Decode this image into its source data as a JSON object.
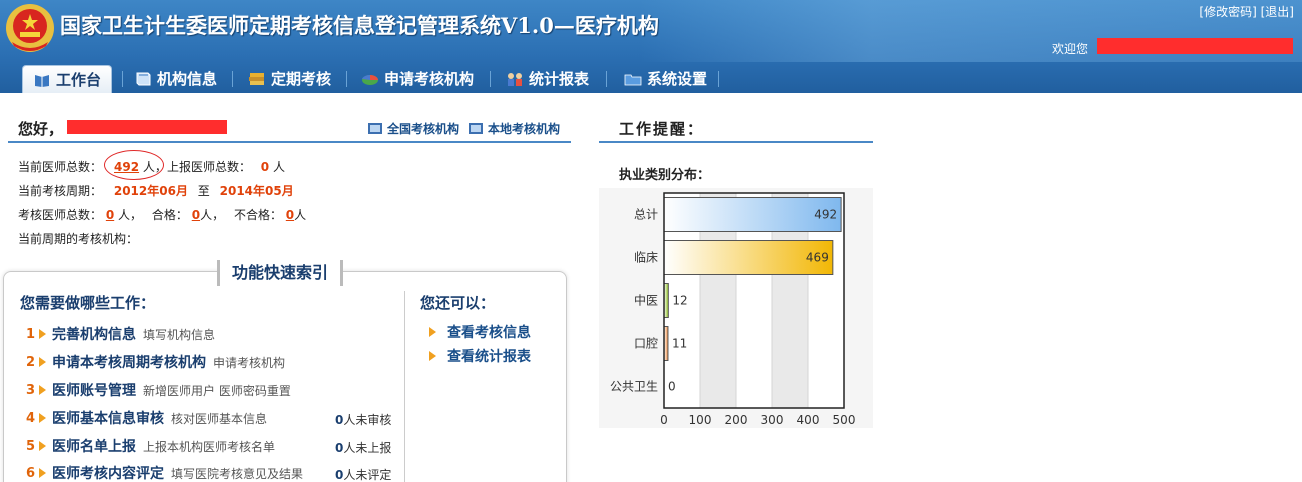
{
  "header": {
    "title": "国家卫生计生委医师定期考核信息登记管理系统V1.0—医疗机构",
    "change_password": "[修改密码]",
    "logout": "[退出]",
    "welcome": "欢迎您"
  },
  "nav": {
    "items": [
      {
        "label": "工作台",
        "icon": "book-icon"
      },
      {
        "label": "机构信息",
        "icon": "book-blue-icon"
      },
      {
        "label": "定期考核",
        "icon": "books-stack-icon"
      },
      {
        "label": "申请考核机构",
        "icon": "pie-icon"
      },
      {
        "label": "统计报表",
        "icon": "people-icon"
      },
      {
        "label": "系统设置",
        "icon": "folder-icon"
      }
    ]
  },
  "left": {
    "greeting": "您好，",
    "quick_links": [
      "全国考核机构",
      "本地考核机构"
    ],
    "info": {
      "total_doctors_label": "当前医师总数：",
      "total_doctors": "492",
      "unit": "人",
      "sep": "，",
      "reported_label": "上报医师总数：",
      "reported": "0",
      "period_label": "当前考核周期：",
      "period_start": "2012年06月",
      "period_to": "至",
      "period_end": "2014年05月",
      "exam_total_label": "考核医师总数：",
      "exam_total": "0",
      "pass_label": "合格：",
      "pass": "0",
      "fail_label": "不合格：",
      "fail": "0",
      "agency_label": "当前周期的考核机构："
    },
    "func_index": {
      "title": "功能快速索引",
      "need_title": "您需要做哪些工作：",
      "also_title": "您还可以：",
      "tasks": [
        {
          "num": "1",
          "name": "完善机构信息",
          "desc": "填写机构信息",
          "count": "",
          "count_suffix": ""
        },
        {
          "num": "2",
          "name": "申请本考核周期考核机构",
          "desc": "申请考核机构",
          "count": "",
          "count_suffix": ""
        },
        {
          "num": "3",
          "name": "医师账号管理",
          "desc": "新增医师用户  医师密码重置",
          "count": "",
          "count_suffix": ""
        },
        {
          "num": "4",
          "name": "医师基本信息审核",
          "desc": "核对医师基本信息",
          "count": "0",
          "count_suffix": "人未审核"
        },
        {
          "num": "5",
          "name": "医师名单上报",
          "desc": "上报本机构医师考核名单",
          "count": "0",
          "count_suffix": "人未上报"
        },
        {
          "num": "6",
          "name": "医师考核内容评定",
          "desc": "填写医院考核意见及结果",
          "count": "0",
          "count_suffix": "人未评定"
        }
      ],
      "also": [
        "查看考核信息",
        "查看统计报表"
      ]
    }
  },
  "right": {
    "reminder_title": "工作提醒：",
    "dist_title": "执业类别分布："
  },
  "chart_data": {
    "type": "bar",
    "orientation": "horizontal",
    "categories": [
      "总计",
      "临床",
      "中医",
      "口腔",
      "公共卫生"
    ],
    "values": [
      492,
      469,
      12,
      11,
      0
    ],
    "value_labels": [
      "492",
      "469",
      "12",
      "11",
      "0"
    ],
    "xlim": [
      0,
      500
    ],
    "xticks": [
      "0",
      "100",
      "200",
      "300",
      "400",
      "500"
    ],
    "colors": [
      "#7fb8ee",
      "#f2b705",
      "#8fc31f",
      "#f08a3c",
      "#999999"
    ],
    "grid": "vertical-bands"
  }
}
